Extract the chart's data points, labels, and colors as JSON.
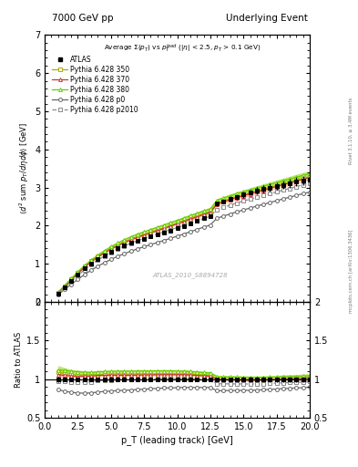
{
  "title_left": "7000 GeV pp",
  "title_right": "Underlying Event",
  "xlabel": "p_T (leading track) [GeV]",
  "ylabel": "⟨d² sum p_T/dηdϕ⟩ [GeV]",
  "watermark": "ATLAS_2010_S8894728",
  "right_label_top": "Rivet 3.1.10, ≥ 3.4M events",
  "right_label_bot": "mcplots.cern.ch [arXiv:1306.3436]",
  "xlim": [
    0,
    20
  ],
  "ylim_main": [
    0,
    7
  ],
  "ylim_ratio": [
    0.5,
    2.0
  ],
  "pt_x": [
    1.0,
    1.5,
    2.0,
    2.5,
    3.0,
    3.5,
    4.0,
    4.5,
    5.0,
    5.5,
    6.0,
    6.5,
    7.0,
    7.5,
    8.0,
    8.5,
    9.0,
    9.5,
    10.0,
    10.5,
    11.0,
    11.5,
    12.0,
    12.5,
    13.0,
    13.5,
    14.0,
    14.5,
    15.0,
    15.5,
    16.0,
    16.5,
    17.0,
    17.5,
    18.0,
    18.5,
    19.0,
    19.5,
    20.0
  ],
  "atlas_y": [
    0.225,
    0.385,
    0.555,
    0.72,
    0.875,
    1.01,
    1.12,
    1.22,
    1.315,
    1.4,
    1.475,
    1.545,
    1.605,
    1.66,
    1.715,
    1.765,
    1.82,
    1.875,
    1.935,
    1.99,
    2.06,
    2.125,
    2.195,
    2.255,
    2.58,
    2.64,
    2.7,
    2.76,
    2.815,
    2.87,
    2.92,
    2.96,
    3.0,
    3.04,
    3.07,
    3.11,
    3.15,
    3.185,
    3.21
  ],
  "atlas_yerr": [
    0.008,
    0.008,
    0.009,
    0.01,
    0.01,
    0.011,
    0.012,
    0.013,
    0.014,
    0.015,
    0.016,
    0.017,
    0.018,
    0.019,
    0.022,
    0.023,
    0.024,
    0.025,
    0.03,
    0.031,
    0.04,
    0.041,
    0.05,
    0.052,
    0.06,
    0.062,
    0.07,
    0.072,
    0.08,
    0.082,
    0.09,
    0.092,
    0.1,
    0.102,
    0.11,
    0.112,
    0.12,
    0.122,
    0.13
  ],
  "py350_y": [
    0.245,
    0.415,
    0.59,
    0.76,
    0.925,
    1.065,
    1.19,
    1.3,
    1.405,
    1.495,
    1.575,
    1.65,
    1.715,
    1.775,
    1.835,
    1.89,
    1.95,
    2.01,
    2.07,
    2.13,
    2.195,
    2.255,
    2.315,
    2.37,
    2.59,
    2.65,
    2.705,
    2.76,
    2.81,
    2.86,
    2.91,
    2.955,
    3.005,
    3.05,
    3.1,
    3.145,
    3.195,
    3.24,
    3.285
  ],
  "py350_err": [
    0.012,
    0.012,
    0.013,
    0.014,
    0.015,
    0.016,
    0.017,
    0.018,
    0.019,
    0.02,
    0.021,
    0.022,
    0.023,
    0.024,
    0.026,
    0.027,
    0.028,
    0.029,
    0.031,
    0.032,
    0.035,
    0.036,
    0.039,
    0.04,
    0.045,
    0.046,
    0.05,
    0.052,
    0.055,
    0.057,
    0.06,
    0.062,
    0.065,
    0.067,
    0.07,
    0.072,
    0.075,
    0.077,
    0.08
  ],
  "py370_y": [
    0.238,
    0.405,
    0.578,
    0.748,
    0.91,
    1.05,
    1.175,
    1.282,
    1.385,
    1.473,
    1.553,
    1.625,
    1.692,
    1.752,
    1.812,
    1.868,
    1.928,
    1.988,
    2.048,
    2.108,
    2.172,
    2.232,
    2.292,
    2.348,
    2.565,
    2.625,
    2.68,
    2.735,
    2.785,
    2.835,
    2.885,
    2.93,
    2.98,
    3.025,
    3.075,
    3.12,
    3.17,
    3.215,
    3.258
  ],
  "py370_err": [
    0.011,
    0.011,
    0.012,
    0.013,
    0.014,
    0.015,
    0.016,
    0.017,
    0.018,
    0.019,
    0.02,
    0.021,
    0.022,
    0.023,
    0.025,
    0.026,
    0.027,
    0.028,
    0.03,
    0.031,
    0.034,
    0.035,
    0.038,
    0.039,
    0.044,
    0.045,
    0.049,
    0.051,
    0.054,
    0.056,
    0.059,
    0.061,
    0.064,
    0.066,
    0.069,
    0.071,
    0.074,
    0.076,
    0.079
  ],
  "py380_y": [
    0.252,
    0.43,
    0.612,
    0.79,
    0.955,
    1.098,
    1.228,
    1.342,
    1.45,
    1.545,
    1.63,
    1.708,
    1.778,
    1.84,
    1.9,
    1.958,
    2.018,
    2.08,
    2.14,
    2.2,
    2.265,
    2.325,
    2.385,
    2.442,
    2.665,
    2.725,
    2.782,
    2.838,
    2.888,
    2.938,
    2.988,
    3.033,
    3.083,
    3.128,
    3.178,
    3.223,
    3.273,
    3.318,
    3.362
  ],
  "py380_err": [
    0.013,
    0.013,
    0.014,
    0.015,
    0.016,
    0.017,
    0.018,
    0.019,
    0.02,
    0.021,
    0.022,
    0.023,
    0.024,
    0.025,
    0.027,
    0.028,
    0.029,
    0.03,
    0.032,
    0.033,
    0.036,
    0.037,
    0.04,
    0.041,
    0.046,
    0.047,
    0.051,
    0.053,
    0.056,
    0.058,
    0.061,
    0.063,
    0.066,
    0.068,
    0.071,
    0.073,
    0.076,
    0.078,
    0.081
  ],
  "pyp0_y": [
    0.195,
    0.325,
    0.462,
    0.592,
    0.718,
    0.832,
    0.935,
    1.028,
    1.115,
    1.195,
    1.265,
    1.33,
    1.392,
    1.448,
    1.505,
    1.558,
    1.615,
    1.668,
    1.725,
    1.782,
    1.842,
    1.902,
    1.962,
    2.018,
    2.195,
    2.252,
    2.308,
    2.362,
    2.412,
    2.462,
    2.512,
    2.558,
    2.608,
    2.655,
    2.702,
    2.748,
    2.795,
    2.84,
    2.882
  ],
  "pyp0_err": [
    0.01,
    0.01,
    0.011,
    0.012,
    0.013,
    0.014,
    0.015,
    0.016,
    0.017,
    0.018,
    0.019,
    0.02,
    0.021,
    0.022,
    0.024,
    0.025,
    0.026,
    0.027,
    0.029,
    0.03,
    0.033,
    0.034,
    0.037,
    0.038,
    0.043,
    0.044,
    0.048,
    0.05,
    0.053,
    0.055,
    0.058,
    0.06,
    0.063,
    0.065,
    0.068,
    0.07,
    0.073,
    0.075,
    0.078
  ],
  "pyp2010_y": [
    0.22,
    0.375,
    0.535,
    0.692,
    0.845,
    0.978,
    1.098,
    1.202,
    1.302,
    1.39,
    1.468,
    1.54,
    1.605,
    1.662,
    1.722,
    1.778,
    1.838,
    1.895,
    1.952,
    2.01,
    2.072,
    2.132,
    2.19,
    2.245,
    2.428,
    2.485,
    2.54,
    2.595,
    2.645,
    2.695,
    2.745,
    2.79,
    2.84,
    2.885,
    2.932,
    2.978,
    3.025,
    3.07,
    3.112
  ],
  "pyp2010_err": [
    0.011,
    0.011,
    0.012,
    0.013,
    0.014,
    0.015,
    0.016,
    0.017,
    0.018,
    0.019,
    0.02,
    0.021,
    0.022,
    0.023,
    0.025,
    0.026,
    0.027,
    0.028,
    0.03,
    0.031,
    0.034,
    0.035,
    0.038,
    0.039,
    0.044,
    0.045,
    0.049,
    0.051,
    0.054,
    0.056,
    0.059,
    0.061,
    0.064,
    0.066,
    0.069,
    0.071,
    0.074,
    0.076,
    0.079
  ],
  "color_350": "#aaaa00",
  "color_370": "#cc3333",
  "color_380": "#66cc00",
  "color_p0": "#666666",
  "color_p2010": "#888888",
  "color_atlas": "#000000",
  "band_350": "#dddd44",
  "band_370": "#ffbbbb",
  "band_380": "#aade44",
  "band_p0": "#aaaaaa",
  "band_p2010": "#bbbbbb"
}
